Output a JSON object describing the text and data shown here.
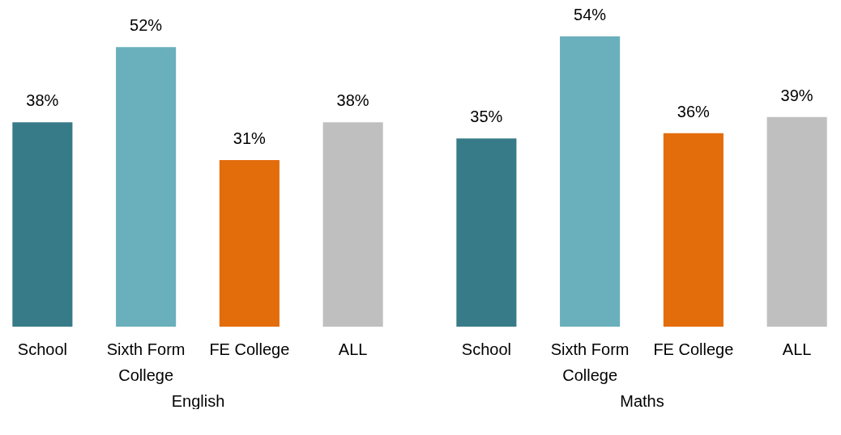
{
  "chart_data": [
    {
      "type": "bar",
      "xlabel": "English",
      "categories": [
        "School",
        "Sixth Form College",
        "FE College",
        "ALL"
      ],
      "values": [
        38,
        52,
        31,
        38
      ],
      "value_labels": [
        "38%",
        "52%",
        "31%",
        "38%"
      ],
      "colors": [
        "#387b88",
        "#6aafbc",
        "#e36c0b",
        "#bfbfbf"
      ],
      "tick_labels": "x",
      "grid": false
    },
    {
      "type": "bar",
      "xlabel": "Maths",
      "categories": [
        "School",
        "Sixth Form College",
        "FE College",
        "ALL"
      ],
      "values": [
        35,
        54,
        36,
        39
      ],
      "value_labels": [
        "35%",
        "54%",
        "36%",
        "39%"
      ],
      "colors": [
        "#387b88",
        "#6aafbc",
        "#e36c0b",
        "#bfbfbf"
      ],
      "tick_labels": "x",
      "grid": false
    }
  ]
}
